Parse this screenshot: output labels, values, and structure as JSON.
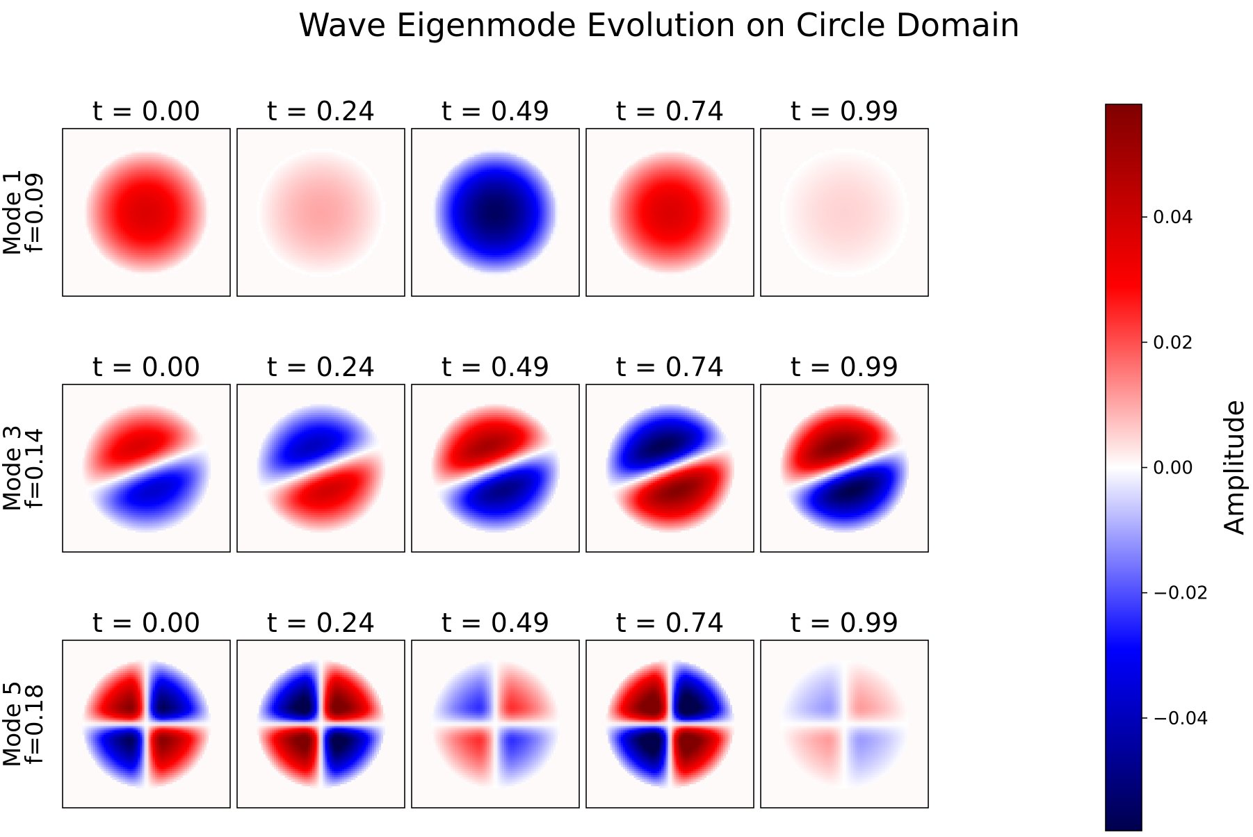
{
  "figure": {
    "title": "Wave Eigenmode Evolution on Circle Domain"
  },
  "chart_data": {
    "type": "heatmap",
    "title": "Wave Eigenmode Evolution on Circle Domain",
    "colormap": "seismic",
    "colors": {
      "negative_end": "#00004c",
      "blue": "#0000ff",
      "zero": "#ffffff",
      "red": "#ff0000",
      "positive_end": "#800000"
    },
    "grid": false,
    "times": [
      "t = 0.00",
      "t = 0.24",
      "t = 0.49",
      "t = 0.74",
      "t = 0.99"
    ],
    "rows": [
      {
        "label_line1": "Mode 1",
        "label_line2": "f=0.09",
        "pattern": "radial",
        "peak_amplitudes": [
          0.037,
          0.01,
          -0.055,
          0.037,
          0.005
        ]
      },
      {
        "label_line1": "Mode 3",
        "label_line2": "f=0.14",
        "pattern": "dipole-tilted",
        "peak_amplitudes": [
          0.034,
          -0.036,
          0.045,
          -0.052,
          0.053
        ]
      },
      {
        "label_line1": "Mode 5",
        "label_line2": "f=0.18",
        "pattern": "quadrupole",
        "peak_amplitudes": [
          -0.045,
          0.052,
          0.019,
          -0.056,
          0.009
        ]
      }
    ],
    "colorbar": {
      "label": "Amplitude",
      "range": [
        -0.058,
        0.058
      ],
      "ticks": [
        0.04,
        0.02,
        0.0,
        -0.02,
        -0.04
      ],
      "tick_labels": [
        "0.04",
        "0.02",
        "0.00",
        "−0.02",
        "−0.04"
      ],
      "placement": "right"
    }
  }
}
